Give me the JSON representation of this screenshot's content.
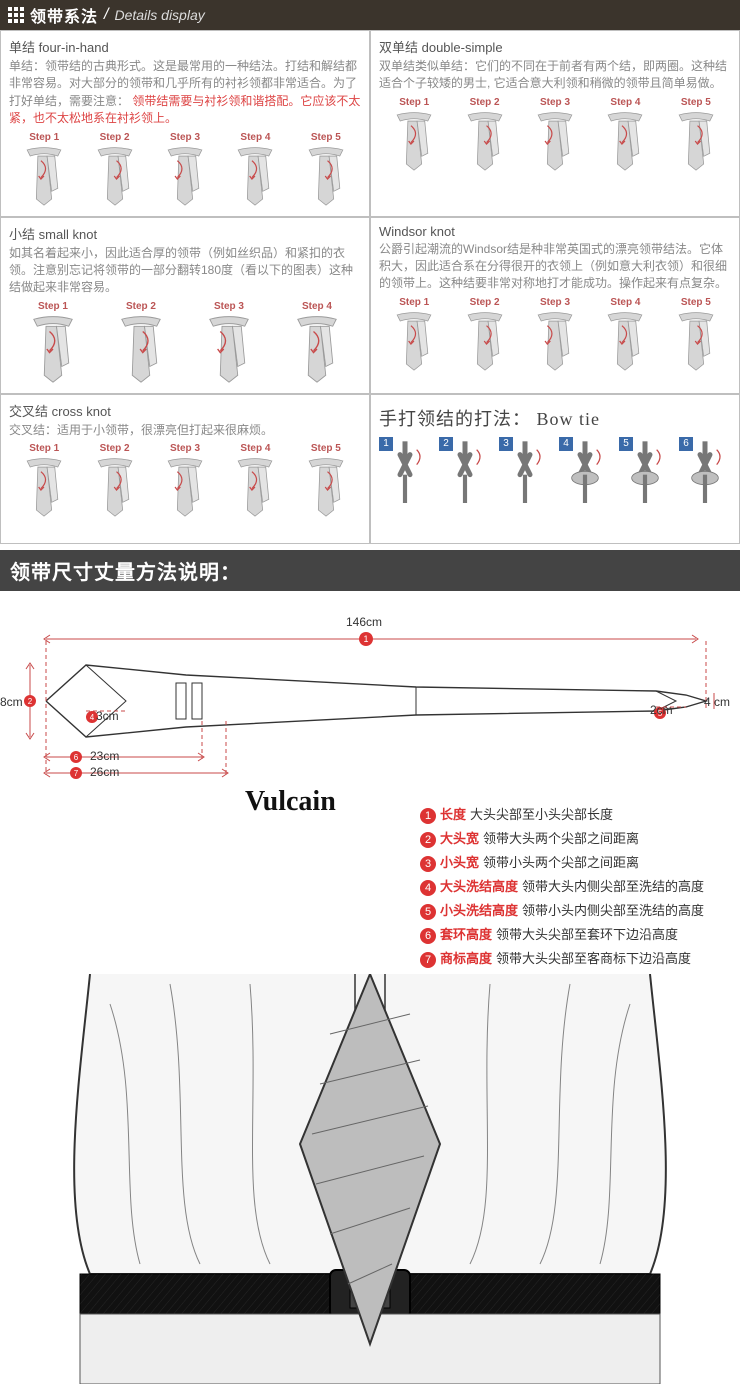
{
  "header": {
    "cn": "领带系法",
    "en": "Details display"
  },
  "knots": [
    {
      "title": "单结 four-in-hand",
      "desc_plain": "单结：领带结的古典形式。这是最常用的一种结法。打结和解结都非常容易。对大部分的领带和几乎所有的衬衫领都非常适合。为了打好单结，需要注意：",
      "desc_red": "领带结需要与衬衫领和谐搭配。它应该不太紧，也不太松地系在衬衫领上。",
      "steps": 5,
      "step_label": "Step"
    },
    {
      "title": "双单结 double-simple",
      "desc_plain": "双单结类似单结：它们的不同在于前者有两个结，即两圈。这种结适合个子较矮的男士, 它适合意大利领和稍微的领带且简单易做。",
      "desc_red": "",
      "steps": 5,
      "step_label": "Step"
    },
    {
      "title": "小结 small knot",
      "desc_plain": "如其名着起来小，因此适合厚的领带（例如丝织品）和紧扣的衣领。注意别忘记将领带的一部分翻转180度（看以下的图表）这种结做起来非常容易。",
      "desc_red": "",
      "steps": 4,
      "step_label": "Step"
    },
    {
      "title": "Windsor knot",
      "desc_plain": "公爵引起潮流的Windsor结是种非常英国式的漂亮领带结法。它体积大，因此适合系在分得很开的衣领上（例如意大利衣领）和很细的领带上。这种结要非常对称地打才能成功。操作起来有点复杂。",
      "desc_red": "",
      "steps": 5,
      "step_label": "Step"
    },
    {
      "title": "交叉结 cross knot",
      "desc_plain": "交叉结：适用于小领带，很漂亮但打起来很麻烦。",
      "desc_red": "",
      "steps": 5,
      "step_label": "Step"
    }
  ],
  "bowtie": {
    "title": "手打领结的打法： Bow tie",
    "steps": 6
  },
  "size_banner": "领带尺寸丈量方法说明：",
  "diagram": {
    "total_length": "146cm",
    "wide_height": "8cm",
    "narrow_height": "4 cm",
    "label_3cm": "3cm",
    "label_2cm": "2cm",
    "label_23cm": "23cm",
    "label_26cm": "26cm",
    "brand": "Vulcain",
    "tie_stroke": "#333333",
    "guide_color": "#c84a4a",
    "dash": "4 3"
  },
  "legend": [
    {
      "n": "①",
      "k": "长度",
      "v": "大头尖部至小头尖部长度"
    },
    {
      "n": "②",
      "k": "大头宽",
      "v": "领带大头两个尖部之间距离"
    },
    {
      "n": "③",
      "k": "小头宽",
      "v": "领带小头两个尖部之间距离"
    },
    {
      "n": "④",
      "k": "大头洗结高度",
      "v": "领带大头内侧尖部至洗结的高度"
    },
    {
      "n": "⑤",
      "k": "小头洗结高度",
      "v": "领带小头内侧尖部至洗结的高度"
    },
    {
      "n": "⑥",
      "k": "套环高度",
      "v": "领带大头尖部至套环下边沿高度"
    },
    {
      "n": "⑦",
      "k": "商标高度",
      "v": "领带大头尖部至客商标下边沿高度"
    }
  ],
  "colors": {
    "header_bg": "#3b342c",
    "cell_border": "#bfbfbf",
    "step_label": "#b55533",
    "tie_fill": "#d6d6d6",
    "tie_stroke": "#9a9a9a",
    "arrow": "#c84a4a",
    "bowtie_num_bg": "#3a6aa9"
  }
}
